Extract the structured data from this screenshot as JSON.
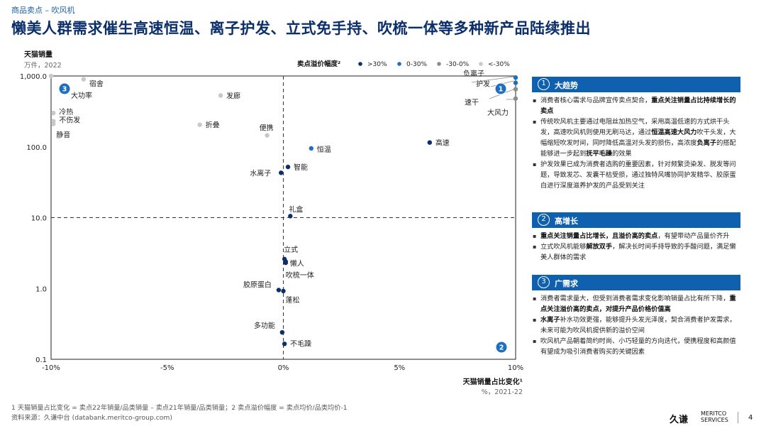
{
  "breadcrumb": "商品卖点 – 吹风机",
  "title": "懒美人群需求催生高速恒温、离子护发、立式免手持、吹梳一体等多种新产品陆续推出",
  "chart_data": {
    "type": "scatter",
    "ylabel": "天猫销量",
    "ylabel_unit": "万件，2022",
    "xlabel": "天猫销量占比变化¹",
    "xlabel_unit": "%，2021-22",
    "xlim": [
      -10,
      10
    ],
    "ylim": [
      0.1,
      1000
    ],
    "y_scale": "log",
    "x_ticks": [
      "-10%",
      "-5%",
      "0%",
      "5%",
      "10%"
    ],
    "y_ticks": [
      "0.1",
      "1.0",
      "10.0",
      "100.0",
      "1,000.0"
    ],
    "legend_title": "卖点溢价幅度²",
    "legend": [
      {
        "label": ">30%",
        "color": "#0b2f6b"
      },
      {
        "label": "0-30%",
        "color": "#1f6fc0"
      },
      {
        "label": "-30-0%",
        "color": "#8c8c8c"
      },
      {
        "label": "<-30%",
        "color": "#c8c8c8"
      }
    ],
    "points": [
      {
        "label": "负离子",
        "x": 10.0,
        "y": 950,
        "cat": "0-30%"
      },
      {
        "label": "护发",
        "x": 10.0,
        "y": 800,
        "cat": "0-30%"
      },
      {
        "label": "速干",
        "x": 10.0,
        "y": 650,
        "cat": "-30-0%"
      },
      {
        "label": "大风力",
        "x": 10.0,
        "y": 480,
        "cat": "-30-0%"
      },
      {
        "label": "宿舍",
        "x": -8.6,
        "y": 900,
        "cat": "<-30%"
      },
      {
        "label": "大功率",
        "x": -10.0,
        "y": 1000,
        "cat": "<-30%"
      },
      {
        "label": "发廊",
        "x": -2.7,
        "y": 530,
        "cat": "<-30%"
      },
      {
        "label": "冷热",
        "x": -9.9,
        "y": 300,
        "cat": "<-30%"
      },
      {
        "label": "不伤发",
        "x": -9.9,
        "y": 230,
        "cat": "<-30%"
      },
      {
        "label": "静音",
        "x": -9.9,
        "y": 210,
        "cat": "<-30%"
      },
      {
        "label": "折叠",
        "x": -3.6,
        "y": 205,
        "cat": "<-30%"
      },
      {
        "label": "便携",
        "x": -0.7,
        "y": 145,
        "cat": "<-30%"
      },
      {
        "label": "高速",
        "x": 6.3,
        "y": 115,
        "cat": ">30%"
      },
      {
        "label": "恒温",
        "x": 1.2,
        "y": 95,
        "cat": "0-30%"
      },
      {
        "label": "智能",
        "x": 0.2,
        "y": 52,
        "cat": ">30%"
      },
      {
        "label": "水离子",
        "x": -0.1,
        "y": 43,
        "cat": ">30%"
      },
      {
        "label": "礼盒",
        "x": 0.3,
        "y": 10.5,
        "cat": ">30%"
      },
      {
        "label": "立式",
        "x": 0.05,
        "y": 2.6,
        "cat": ">30%"
      },
      {
        "label": "懒人",
        "x": 0.1,
        "y": 2.4,
        "cat": ">30%"
      },
      {
        "label": "吹梳一体",
        "x": 0.1,
        "y": 2.3,
        "cat": ">30%"
      },
      {
        "label": "胶原蛋白",
        "x": -0.2,
        "y": 0.95,
        "cat": ">30%"
      },
      {
        "label": "蓬松",
        "x": 0.0,
        "y": 0.92,
        "cat": ">30%"
      },
      {
        "label": "多功能",
        "x": -0.05,
        "y": 0.24,
        "cat": ">30%"
      },
      {
        "label": "不毛躁",
        "x": 0.05,
        "y": 0.165,
        "cat": ">30%"
      }
    ],
    "quadrant_badges": [
      "1",
      "2",
      "3"
    ]
  },
  "panel": {
    "sections": [
      {
        "num": "1",
        "heading": "大趋势",
        "bullets": [
          [
            {
              "t": "消费者核心需求与品牌宣传卖点契合，"
            },
            {
              "t": "重点关注销量占比持续增长的卖点",
              "b": true
            }
          ],
          [
            {
              "t": "传统吹风机主要通过电阻丝加热空气，采用高温低速的方式烘干头发，高速吹风机则使用无刷马达，通过"
            },
            {
              "t": "恒温高速大风力",
              "b": true
            },
            {
              "t": "吹干头发，大幅缩短吹发时间，同时降低高温对头发的损伤，高浓度"
            },
            {
              "t": "负离子",
              "b": true
            },
            {
              "t": "的搭配能够进一步起到"
            },
            {
              "t": "抚平毛躁",
              "b": true
            },
            {
              "t": "的效果"
            }
          ],
          [
            {
              "t": "护发效果已成为消费者选购的重要因素，针对频繁烫染发、脱发等问题，导致发芯、发囊干枯受损，通过独特风嘴协同护发精华、胶原蛋白进行深度滋养护发的产品受到关注"
            }
          ]
        ]
      },
      {
        "num": "2",
        "heading": "高增长",
        "bullets": [
          [
            {
              "t": "重点关注销量占比增长，且溢价高的卖点",
              "b": true
            },
            {
              "t": "，有望带动产品量价齐升"
            }
          ],
          [
            {
              "t": "立式吹风机能够"
            },
            {
              "t": "解放双手",
              "b": true
            },
            {
              "t": "，解决长时间手持导致的手酸问题，满足懒美人群体的需求"
            }
          ]
        ]
      },
      {
        "num": "3",
        "heading": "广需求",
        "bullets": [
          [
            {
              "t": "消费者需求量大，但受到消费者需求变化影响销量占比有所下降，"
            },
            {
              "t": "重点关注溢价高的卖点，对提升产品价格价值高",
              "b": true
            }
          ],
          [
            {
              "t": "水离子",
              "b": true
            },
            {
              "t": "补水功效更强，能够提升头发光泽度，契合消费者护发需求，未来可能为吹风机提供新的溢价空间"
            }
          ],
          [
            {
              "t": "吹风机产品朝着简约时尚、小巧轻量的方向迭代，便携程度和高颜值有望成为吸引消费者购买的关键因素"
            }
          ]
        ]
      }
    ]
  },
  "footnote1": "1  天猫销量占比变化 = 卖点22年销量/品类销量 – 卖点21年销量/品类销量；2  卖点溢价幅度 = 卖点均价/品类均价-1",
  "footnote2": "资料来源：久谦中台 (databank.meritco-group.com)",
  "logo_text": "久谦",
  "logo_sub1": "MERITCO",
  "logo_sub2": "SERVICES",
  "page_number": "4"
}
